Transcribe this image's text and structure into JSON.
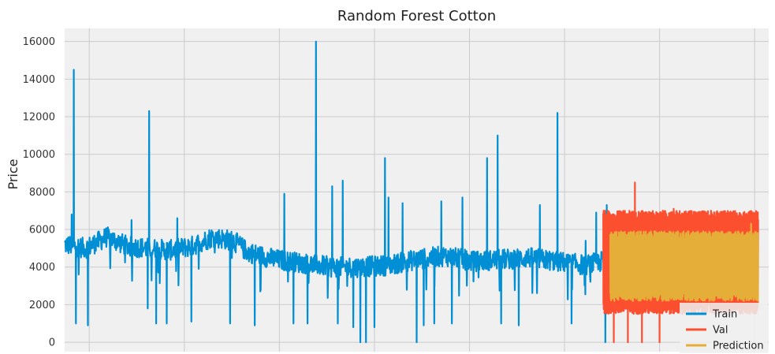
{
  "chart_data": {
    "type": "line",
    "title": "Random Forest Cotton",
    "xlabel": "",
    "ylabel": "Price",
    "ylim": [
      -500,
      16700
    ],
    "y_ticks": [
      0,
      2000,
      4000,
      6000,
      8000,
      10000,
      12000,
      14000,
      16000
    ],
    "x_tick_labels_visible": false,
    "grid": true,
    "legend_position": "bottom-right",
    "colors": {
      "background": "#f0f0f0",
      "grid": "#cbcbcb",
      "train": "#008fd5",
      "val": "#fc4f30",
      "prediction": "#e5ae38"
    },
    "series": [
      {
        "name": "Train",
        "key": "train",
        "baseline": [
          [
            0,
            5200
          ],
          [
            0.03,
            5000
          ],
          [
            0.06,
            5600
          ],
          [
            0.09,
            5100
          ],
          [
            0.12,
            5000
          ],
          [
            0.15,
            4900
          ],
          [
            0.18,
            5100
          ],
          [
            0.21,
            5600
          ],
          [
            0.24,
            5400
          ],
          [
            0.26,
            4800
          ],
          [
            0.3,
            4400
          ],
          [
            0.34,
            4200
          ],
          [
            0.38,
            4000
          ],
          [
            0.42,
            4000
          ],
          [
            0.46,
            4100
          ],
          [
            0.5,
            4400
          ],
          [
            0.54,
            4600
          ],
          [
            0.58,
            4300
          ],
          [
            0.62,
            4400
          ],
          [
            0.66,
            4500
          ],
          [
            0.7,
            4300
          ],
          [
            0.74,
            4100
          ],
          [
            0.775,
            4400
          ]
        ],
        "noise": 1100,
        "spikes": [
          [
            0.013,
            14500
          ],
          [
            0.01,
            6800
          ],
          [
            0.016,
            1000
          ],
          [
            0.033,
            900
          ],
          [
            0.037,
            5000
          ],
          [
            0.095,
            6500
          ],
          [
            0.12,
            12300
          ],
          [
            0.118,
            1800
          ],
          [
            0.13,
            1000
          ],
          [
            0.145,
            1000
          ],
          [
            0.16,
            6600
          ],
          [
            0.18,
            1100
          ],
          [
            0.235,
            1000
          ],
          [
            0.27,
            900
          ],
          [
            0.312,
            7900
          ],
          [
            0.325,
            1000
          ],
          [
            0.345,
            1000
          ],
          [
            0.357,
            16000
          ],
          [
            0.38,
            8300
          ],
          [
            0.388,
            1000
          ],
          [
            0.395,
            8600
          ],
          [
            0.41,
            800
          ],
          [
            0.42,
            0
          ],
          [
            0.428,
            0
          ],
          [
            0.44,
            800
          ],
          [
            0.455,
            9800
          ],
          [
            0.46,
            7700
          ],
          [
            0.48,
            7400
          ],
          [
            0.5,
            0
          ],
          [
            0.51,
            900
          ],
          [
            0.525,
            1000
          ],
          [
            0.535,
            7500
          ],
          [
            0.55,
            1000
          ],
          [
            0.565,
            7700
          ],
          [
            0.6,
            9800
          ],
          [
            0.615,
            11000
          ],
          [
            0.62,
            1000
          ],
          [
            0.645,
            900
          ],
          [
            0.675,
            7300
          ],
          [
            0.7,
            12200
          ],
          [
            0.72,
            1000
          ],
          [
            0.74,
            5400
          ],
          [
            0.755,
            6900
          ],
          [
            0.768,
            0
          ],
          [
            0.77,
            7300
          ]
        ]
      },
      {
        "name": "Val",
        "key": "val",
        "x_range": [
          0.765,
          0.985
        ],
        "low": 1500,
        "high": 7000,
        "spikes": [
          [
            0.81,
            8500
          ],
          [
            0.865,
            7100
          ],
          [
            0.91,
            6300
          ],
          [
            0.78,
            0
          ],
          [
            0.8,
            0
          ],
          [
            0.82,
            0
          ],
          [
            0.845,
            0
          ],
          [
            0.95,
            2200
          ]
        ]
      },
      {
        "name": "Prediction",
        "key": "prediction",
        "x_range": [
          0.775,
          0.985
        ],
        "low": 2200,
        "high": 5900,
        "spikes": [
          [
            0.975,
            6300
          ]
        ]
      }
    ]
  }
}
